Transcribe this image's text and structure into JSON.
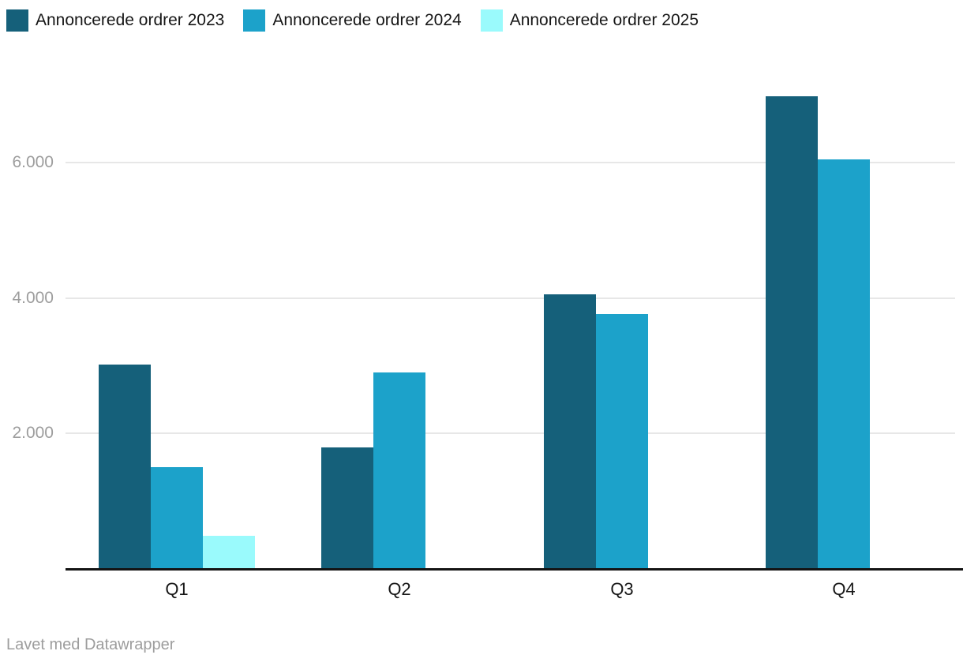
{
  "legend": {
    "items": [
      {
        "label": "Annoncerede ordrer 2023",
        "color": "#15607a"
      },
      {
        "label": "Annoncerede ordrer 2024",
        "color": "#1ca2ca"
      },
      {
        "label": "Annoncerede ordrer 2025",
        "color": "#9afafc"
      }
    ]
  },
  "chart_data": {
    "type": "bar",
    "title": "",
    "xlabel": "",
    "ylabel": "",
    "categories": [
      "Q1",
      "Q2",
      "Q3",
      "Q4"
    ],
    "series": [
      {
        "name": "Annoncerede ordrer 2023",
        "color": "#15607a",
        "values": [
          3020,
          1800,
          4060,
          6980
        ]
      },
      {
        "name": "Annoncerede ordrer 2024",
        "color": "#1ca2ca",
        "values": [
          1500,
          2900,
          3760,
          6050
        ]
      },
      {
        "name": "Annoncerede ordrer 2025",
        "color": "#9afafc",
        "values": [
          490,
          null,
          null,
          null
        ]
      }
    ],
    "ylim": [
      0,
      7350
    ],
    "yticks": [
      {
        "value": 2000,
        "label": "2.000"
      },
      {
        "value": 4000,
        "label": "4.000"
      },
      {
        "value": 6000,
        "label": "6.000"
      }
    ],
    "grid": "horizontal",
    "legend_position": "top-left"
  },
  "footer": {
    "attribution": "Lavet med Datawrapper"
  },
  "colors": {
    "background": "#ffffff",
    "axis_line": "#141414",
    "gridline": "#e7e7e7",
    "tick_label": "#9d9d9d",
    "category_label": "#161616",
    "legend_label": "#161616",
    "footer_text": "#9d9d9d"
  }
}
